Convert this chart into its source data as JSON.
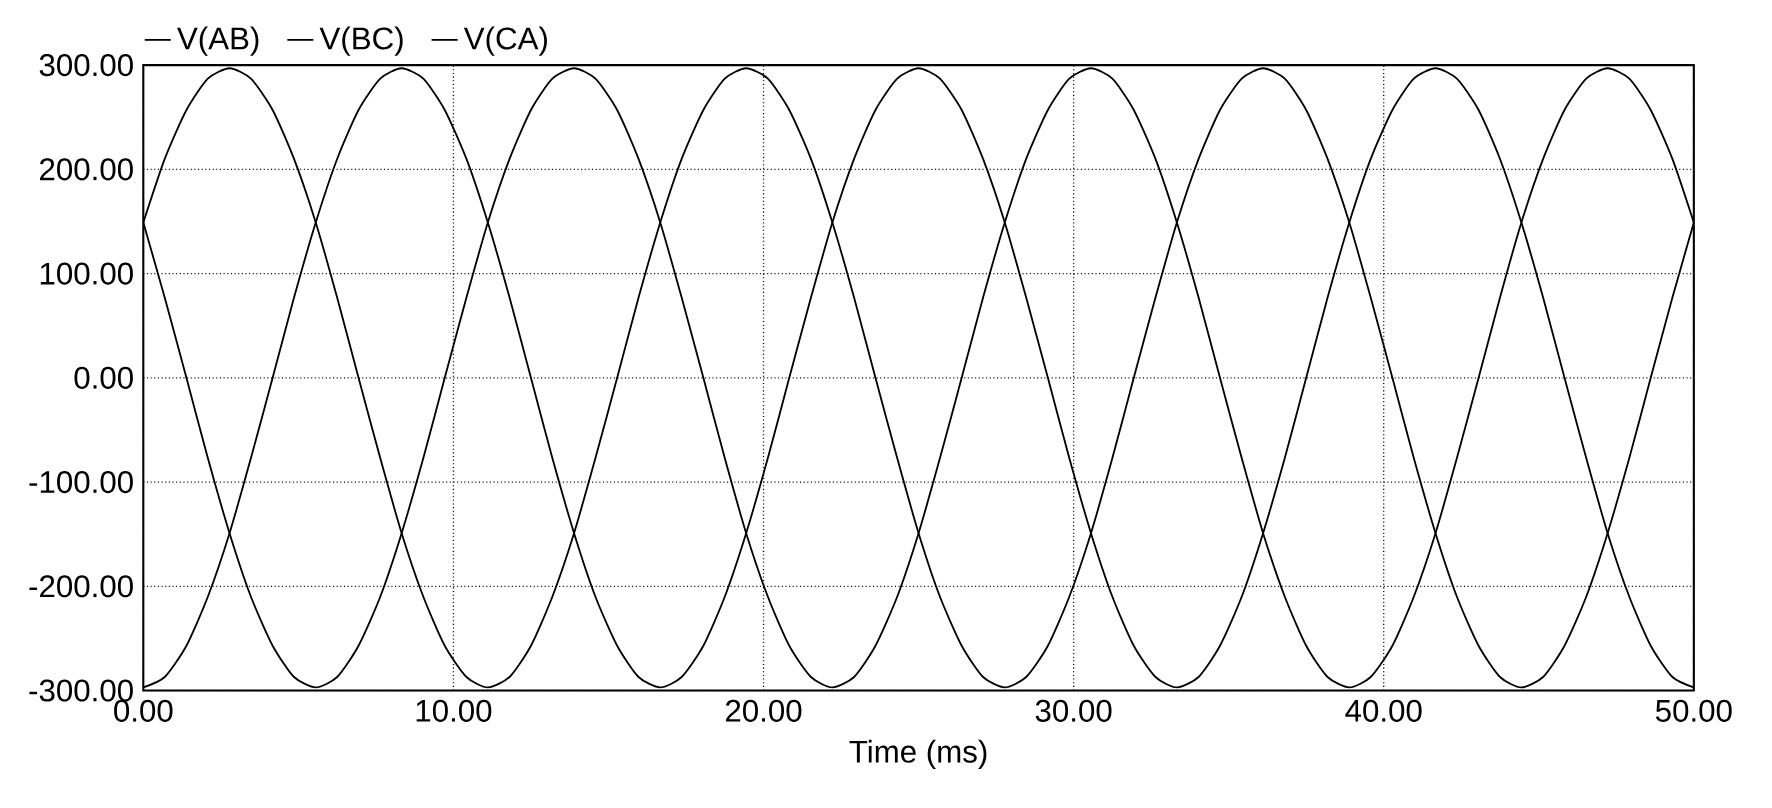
{
  "chart_data": {
    "type": "line",
    "xlabel": "Time (ms)",
    "x": [
      0,
      0.69,
      1.39,
      2.08,
      2.78,
      3.47,
      4.17,
      4.86,
      5.56,
      6.25,
      6.94,
      7.64,
      8.33,
      9.03,
      9.72,
      10.42,
      11.11,
      11.81,
      12.5,
      13.19,
      13.89,
      14.58,
      15.28,
      15.97,
      16.67,
      17.36,
      18.06,
      18.75,
      19.44,
      20.14,
      20.83,
      21.53,
      22.22,
      22.92,
      23.61,
      24.31,
      25,
      25.69,
      26.39,
      27.08,
      27.78,
      28.47,
      29.17,
      29.86,
      30.56,
      31.25,
      31.94,
      32.64,
      33.33,
      34.03,
      34.72,
      35.42,
      36.11,
      36.81,
      37.5,
      38.19,
      38.89,
      39.58,
      40.28,
      40.97,
      41.67,
      42.36,
      43.06,
      43.75,
      44.44,
      45.14,
      45.83,
      46.53,
      47.22,
      47.92,
      48.61,
      49.31,
      50
    ],
    "series": [
      {
        "name": "V(AB)",
        "color": "#000000",
        "values": [
          149,
          210,
          257,
          287,
          297,
          287,
          257,
          210,
          149,
          77,
          0,
          -77,
          -149,
          -210,
          -257,
          -287,
          -297,
          -287,
          -257,
          -210,
          -149,
          -77,
          0,
          77,
          149,
          210,
          257,
          287,
          297,
          287,
          257,
          210,
          149,
          77,
          0,
          -77,
          -149,
          -210,
          -257,
          -287,
          -297,
          -287,
          -257,
          -210,
          -149,
          -77,
          0,
          77,
          149,
          210,
          257,
          287,
          297,
          287,
          257,
          210,
          149,
          77,
          0,
          -77,
          -149,
          -210,
          -257,
          -287,
          -297,
          -287,
          -257,
          -210,
          -149,
          -77,
          0,
          77,
          149
        ]
      },
      {
        "name": "V(BC)",
        "color": "#000000",
        "values": [
          -297,
          -287,
          -257,
          -210,
          -149,
          -77,
          0,
          77,
          149,
          210,
          257,
          287,
          297,
          287,
          257,
          210,
          149,
          77,
          0,
          -77,
          -149,
          -210,
          -257,
          -287,
          -297,
          -287,
          -257,
          -210,
          -149,
          -77,
          0,
          77,
          149,
          210,
          257,
          287,
          297,
          287,
          257,
          210,
          149,
          77,
          0,
          -77,
          -149,
          -210,
          -257,
          -287,
          -297,
          -287,
          -257,
          -210,
          -149,
          -77,
          0,
          77,
          149,
          210,
          257,
          287,
          297,
          287,
          257,
          210,
          149,
          77,
          0,
          -77,
          -149,
          -210,
          -257,
          -287,
          -297
        ]
      },
      {
        "name": "V(CA)",
        "color": "#000000",
        "values": [
          149,
          77,
          0,
          -77,
          -149,
          -210,
          -257,
          -287,
          -297,
          -287,
          -257,
          -210,
          -149,
          -77,
          0,
          77,
          149,
          210,
          257,
          287,
          297,
          287,
          257,
          210,
          149,
          77,
          0,
          -77,
          -149,
          -210,
          -257,
          -287,
          -297,
          -287,
          -257,
          -210,
          -149,
          -77,
          0,
          77,
          149,
          210,
          257,
          287,
          297,
          287,
          257,
          210,
          149,
          77,
          0,
          -77,
          -149,
          -210,
          -257,
          -287,
          -297,
          -287,
          -257,
          -210,
          -149,
          -77,
          0,
          77,
          149,
          210,
          257,
          287,
          297,
          287,
          257,
          210,
          149
        ]
      }
    ],
    "xlim": [
      0,
      50
    ],
    "ylim": [
      -300,
      300
    ],
    "xticks": [
      {
        "value": 0,
        "label": "0.00"
      },
      {
        "value": 10,
        "label": "10.00"
      },
      {
        "value": 20,
        "label": "20.00"
      },
      {
        "value": 30,
        "label": "30.00"
      },
      {
        "value": 40,
        "label": "40.00"
      },
      {
        "value": 50,
        "label": "50.00"
      }
    ],
    "yticks": [
      {
        "value": -300,
        "label": "-300.00"
      },
      {
        "value": -200,
        "label": "-200.00"
      },
      {
        "value": -100,
        "label": "-100.00"
      },
      {
        "value": 0,
        "label": "0.00"
      },
      {
        "value": 100,
        "label": "100.00"
      },
      {
        "value": 200,
        "label": "200.00"
      },
      {
        "value": 300,
        "label": "300.00"
      }
    ],
    "grid": true,
    "legend": "top left",
    "line_style": "solid",
    "marker": "none"
  }
}
